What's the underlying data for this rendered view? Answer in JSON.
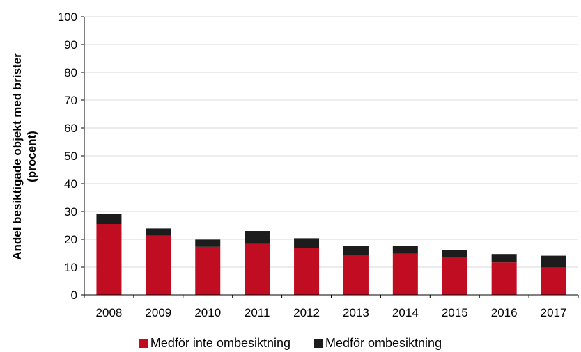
{
  "chart_data": {
    "type": "bar",
    "stacked": true,
    "categories": [
      "2008",
      "2009",
      "2010",
      "2011",
      "2012",
      "2013",
      "2014",
      "2015",
      "2016",
      "2017"
    ],
    "series": [
      {
        "name": "Medför inte ombesiktning",
        "color": "#c00d22",
        "values": [
          25.5,
          21.3,
          17.3,
          18.3,
          16.8,
          14.4,
          14.8,
          13.7,
          11.7,
          9.9
        ]
      },
      {
        "name": "Medför ombesiktning",
        "color": "#1c1c1c",
        "values": [
          3.5,
          2.6,
          2.6,
          4.7,
          3.6,
          3.3,
          2.8,
          2.5,
          3.0,
          4.2
        ]
      }
    ],
    "ylabel_line1": "Andel besiktigade objekt med brister",
    "ylabel_line2": "(procent)",
    "xlabel": "",
    "ylim": [
      0,
      100
    ],
    "yticks": [
      0,
      10,
      20,
      30,
      40,
      50,
      60,
      70,
      80,
      90,
      100
    ],
    "grid": "horizontal",
    "legend_position": "bottom"
  }
}
